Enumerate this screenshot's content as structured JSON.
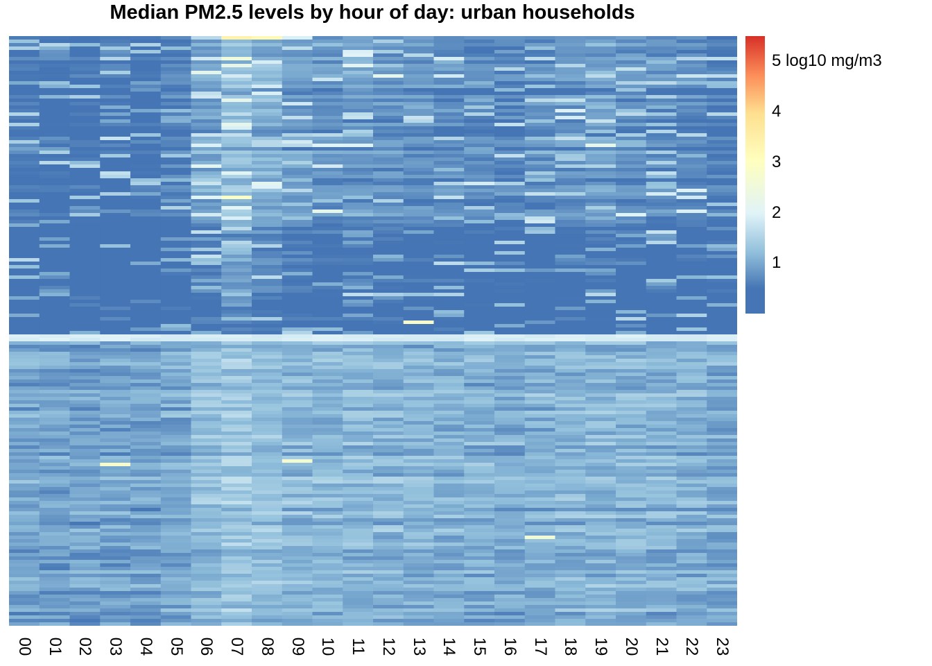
{
  "chart_data": {
    "type": "heatmap",
    "title": "Median PM2.5 levels by hour of day: urban households",
    "xlabel": "",
    "ylabel": "",
    "categories": [
      "00",
      "01",
      "02",
      "03",
      "04",
      "05",
      "06",
      "07",
      "08",
      "09",
      "10",
      "11",
      "12",
      "13",
      "14",
      "15",
      "16",
      "17",
      "18",
      "19",
      "20",
      "21",
      "22",
      "23"
    ],
    "row_count": 170,
    "row_tick_labels": "none",
    "colorbar": {
      "label": "log10 mg/m3",
      "ticks": [
        1,
        2,
        3,
        4,
        5
      ],
      "tick_labels": [
        "1",
        "2",
        "3",
        "4",
        "5 log10 mg/m3"
      ],
      "range": [
        0,
        5.5
      ],
      "palette": [
        "#4575B4",
        "#91BFDB",
        "#E0F3F8",
        "#FFFFBF",
        "#FEE090",
        "#FC8D59",
        "#D73027"
      ]
    },
    "row_groups": [
      {
        "rows": "1-86",
        "typical_value": 0.4,
        "note": "low-concentration households, mostly dark blue with morning (06-08) and midday spikes"
      },
      {
        "rows": "87-88",
        "typical_value": 1.9,
        "note": "uniformly high band across all hours"
      },
      {
        "rows": "89-170",
        "typical_value": 1.0,
        "note": "moderate levels, lighter blue throughout"
      }
    ],
    "hourly_profile_median": [
      0.5,
      0.45,
      0.45,
      0.45,
      0.45,
      0.6,
      1.0,
      1.3,
      1.1,
      0.9,
      0.85,
      0.9,
      0.85,
      0.8,
      0.75,
      0.7,
      0.65,
      0.75,
      0.85,
      0.9,
      0.8,
      0.75,
      0.7,
      0.6
    ],
    "notable_cells": [
      {
        "hour": "07",
        "row": 1,
        "value": 3.4
      },
      {
        "hour": "08",
        "row": 1,
        "value": 3.2
      },
      {
        "hour": "07",
        "row": 47,
        "value": 2.9
      },
      {
        "hour": "13",
        "row": 83,
        "value": 2.8
      },
      {
        "hour": "03",
        "row": 124,
        "value": 2.8
      },
      {
        "hour": "09",
        "row": 123,
        "value": 2.7
      },
      {
        "hour": "17",
        "row": 145,
        "value": 2.6
      }
    ]
  }
}
